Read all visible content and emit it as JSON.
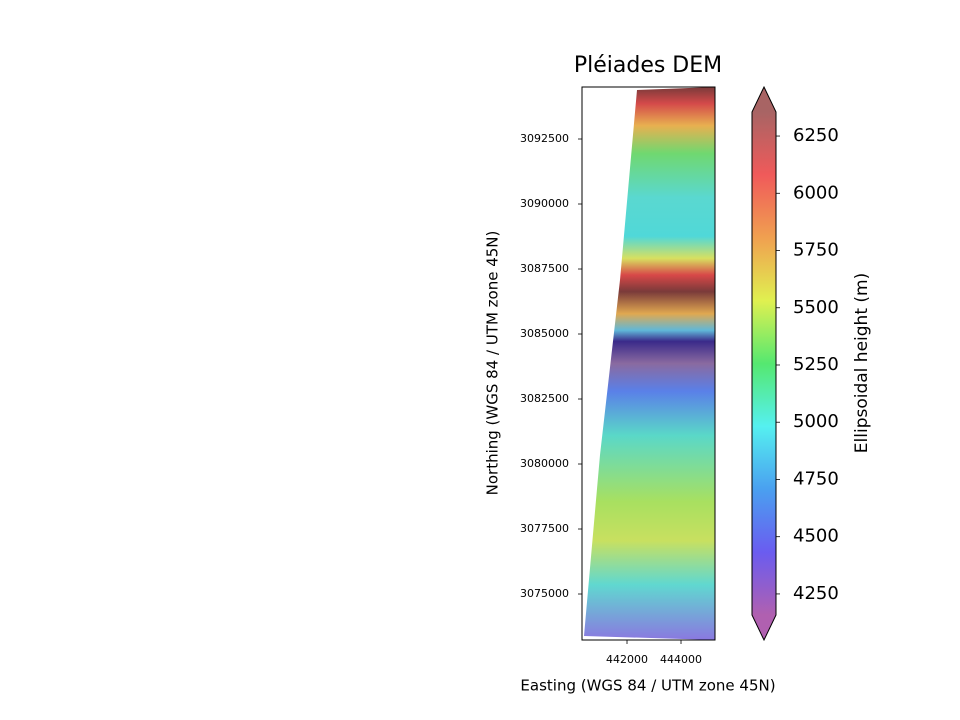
{
  "chart_data": {
    "type": "image",
    "title": "Pléiades DEM",
    "xlabel": "Easting (WGS 84 / UTM zone 45N)",
    "ylabel": "Northing (WGS 84 / UTM zone 45N)",
    "xlim": [
      440333,
      445259
    ],
    "ylim": [
      3073231,
      3094500
    ],
    "xticks": [
      442000,
      444000
    ],
    "yticks": [
      3075000,
      3077500,
      3080000,
      3082500,
      3085000,
      3087500,
      3090000,
      3092500
    ],
    "colorbar": {
      "label": "Ellipsoidal height (m)",
      "lim": [
        4158,
        6355
      ],
      "ticks": [
        4250,
        4500,
        4750,
        5000,
        5250,
        5500,
        5750,
        6000,
        6250
      ],
      "colors": [
        "#b060b0",
        "#6a5cf0",
        "#4aa0f0",
        "#55f0f0",
        "#55e870",
        "#e0f050",
        "#f0a050",
        "#f05a5a",
        "#a86464"
      ]
    }
  }
}
